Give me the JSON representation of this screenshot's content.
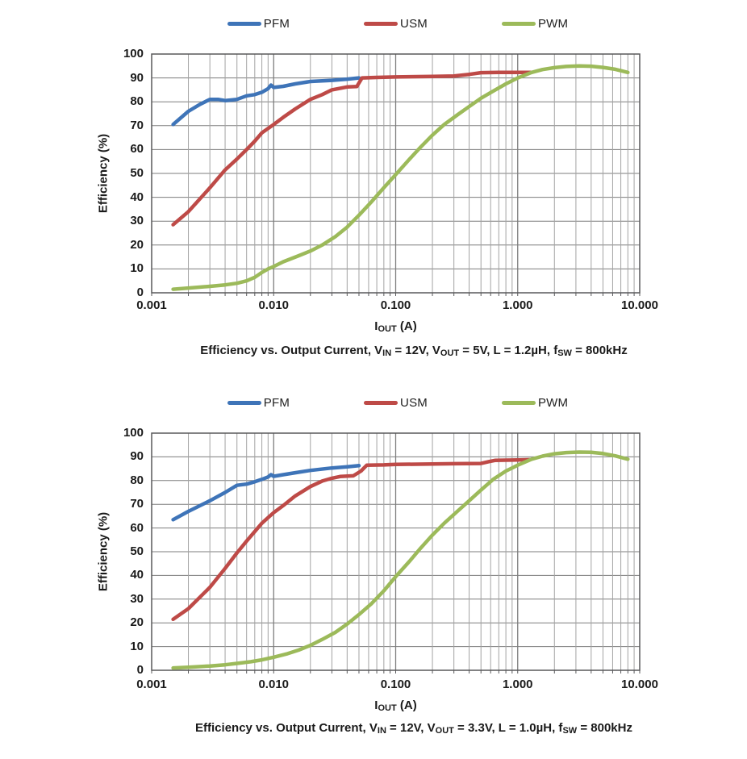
{
  "colors": {
    "pfm": "#3E74B8",
    "usm": "#BE4A47",
    "pwm": "#9CBA5A",
    "grid_minor": "#A3A3A3",
    "grid_major": "#7D7D7D",
    "plot_border": "#58585A",
    "text": "#1A1A1A"
  },
  "chart_data": [
    {
      "type": "line",
      "title": "Efficiency vs. Output Current, VIN = 12V, VOUT = 5V, L = 1.2µH, fSW = 800kHz",
      "xlabel": "IOUT (A)",
      "ylabel": "Efficiency (%)",
      "xscale": "log",
      "xlim": [
        0.001,
        10
      ],
      "ylim": [
        0,
        100
      ],
      "grid": true,
      "legend_position": "top",
      "x_ticks": [
        {
          "value": 0.001,
          "label": "0.001"
        },
        {
          "value": 0.01,
          "label": "0.010"
        },
        {
          "value": 0.1,
          "label": "0.100"
        },
        {
          "value": 1,
          "label": "1.000"
        },
        {
          "value": 10,
          "label": "10.000"
        }
      ],
      "y_ticks": [
        0,
        10,
        20,
        30,
        40,
        50,
        60,
        70,
        80,
        90,
        100
      ],
      "xlabel_parts": [
        {
          "t": "I"
        },
        {
          "t": "OUT",
          "sub": true
        },
        {
          "t": " (A)"
        }
      ],
      "caption_parts": [
        {
          "t": "Efficiency vs. Output Current, V"
        },
        {
          "t": "IN",
          "sub": true
        },
        {
          "t": " = 12V, V"
        },
        {
          "t": "OUT",
          "sub": true
        },
        {
          "t": " = 5V, L = 1.2µH, f"
        },
        {
          "t": "SW",
          "sub": true
        },
        {
          "t": " = 800kHz"
        }
      ],
      "series": [
        {
          "name": "PFM",
          "color_key": "pfm",
          "x": [
            0.0015,
            0.002,
            0.0025,
            0.003,
            0.0035,
            0.004,
            0.005,
            0.006,
            0.007,
            0.008,
            0.009,
            0.0095,
            0.01,
            0.012,
            0.015,
            0.02,
            0.03,
            0.04,
            0.05
          ],
          "y": [
            70.5,
            76,
            79,
            81,
            81,
            80.5,
            81,
            82.5,
            83,
            84,
            85.5,
            87,
            86,
            86.5,
            87.5,
            88.5,
            89,
            89.5,
            90
          ]
        },
        {
          "name": "USM",
          "color_key": "usm",
          "x": [
            0.0015,
            0.002,
            0.003,
            0.004,
            0.005,
            0.006,
            0.007,
            0.008,
            0.01,
            0.012,
            0.015,
            0.02,
            0.025,
            0.03,
            0.04,
            0.048,
            0.053,
            0.07,
            0.1,
            0.2,
            0.3,
            0.4,
            0.5,
            0.7,
            1.0,
            1.3
          ],
          "y": [
            28.5,
            34,
            44,
            51.5,
            56,
            60,
            63.5,
            67,
            70.5,
            73.5,
            77,
            81,
            83,
            85,
            86.2,
            86.4,
            90,
            90.2,
            90.4,
            90.6,
            90.8,
            91.5,
            92.2,
            92.3,
            92.3,
            92.3
          ]
        },
        {
          "name": "PWM",
          "color_key": "pwm",
          "x": [
            0.0015,
            0.002,
            0.003,
            0.004,
            0.005,
            0.006,
            0.007,
            0.008,
            0.009,
            0.01,
            0.012,
            0.016,
            0.02,
            0.025,
            0.032,
            0.04,
            0.05,
            0.063,
            0.08,
            0.1,
            0.13,
            0.16,
            0.2,
            0.25,
            0.32,
            0.4,
            0.5,
            0.63,
            0.8,
            1.0,
            1.3,
            1.6,
            2.0,
            2.5,
            3.2,
            4.0,
            5.0,
            6.3,
            8.0
          ],
          "y": [
            1.5,
            2,
            2.7,
            3.3,
            4,
            5,
            6.5,
            8.5,
            10,
            11,
            13,
            15.5,
            17.5,
            20,
            23.5,
            27.5,
            32.5,
            38,
            44,
            49.5,
            56,
            61,
            66,
            70.5,
            74.5,
            78,
            81.5,
            84.5,
            87.5,
            90,
            92.3,
            93.5,
            94.3,
            94.8,
            95,
            94.9,
            94.4,
            93.6,
            92.3
          ]
        }
      ]
    },
    {
      "type": "line",
      "title": "Efficiency vs. Output Current, VIN = 12V, VOUT = 3.3V, L = 1.0µH, fSW = 800kHz",
      "xlabel": "IOUT (A)",
      "ylabel": "Efficiency (%)",
      "xscale": "log",
      "xlim": [
        0.001,
        10
      ],
      "ylim": [
        0,
        100
      ],
      "grid": true,
      "legend_position": "top",
      "x_ticks": [
        {
          "value": 0.001,
          "label": "0.001"
        },
        {
          "value": 0.01,
          "label": "0.010"
        },
        {
          "value": 0.1,
          "label": "0.100"
        },
        {
          "value": 1,
          "label": "1.000"
        },
        {
          "value": 10,
          "label": "10.000"
        }
      ],
      "y_ticks": [
        0,
        10,
        20,
        30,
        40,
        50,
        60,
        70,
        80,
        90,
        100
      ],
      "xlabel_parts": [
        {
          "t": "I"
        },
        {
          "t": "OUT",
          "sub": true
        },
        {
          "t": " (A)"
        }
      ],
      "caption_parts": [
        {
          "t": "Efficiency vs. Output Current, V"
        },
        {
          "t": "IN",
          "sub": true
        },
        {
          "t": " = 12V, V"
        },
        {
          "t": "OUT",
          "sub": true
        },
        {
          "t": " = 3.3V, L = 1.0µH, f"
        },
        {
          "t": "SW",
          "sub": true
        },
        {
          "t": " = 800kHz"
        }
      ],
      "series": [
        {
          "name": "PFM",
          "color_key": "pfm",
          "x": [
            0.0015,
            0.002,
            0.003,
            0.004,
            0.005,
            0.006,
            0.007,
            0.008,
            0.009,
            0.0095,
            0.01,
            0.012,
            0.015,
            0.02,
            0.03,
            0.04,
            0.05
          ],
          "y": [
            63.5,
            67,
            71.5,
            75,
            78,
            78.5,
            79.5,
            80.5,
            81.5,
            82.5,
            81.8,
            82.5,
            83.3,
            84.3,
            85.3,
            85.8,
            86.3
          ]
        },
        {
          "name": "USM",
          "color_key": "usm",
          "x": [
            0.0015,
            0.002,
            0.003,
            0.004,
            0.005,
            0.006,
            0.007,
            0.008,
            0.01,
            0.012,
            0.015,
            0.02,
            0.025,
            0.03,
            0.035,
            0.045,
            0.052,
            0.058,
            0.08,
            0.1,
            0.2,
            0.3,
            0.5,
            0.58,
            0.65,
            0.8,
            1.0,
            1.25
          ],
          "y": [
            21.5,
            26,
            35,
            43,
            49.5,
            54.5,
            58.5,
            62,
            66.5,
            69.5,
            73.5,
            77.5,
            79.8,
            81,
            81.7,
            82,
            84,
            86.5,
            86.6,
            86.8,
            87,
            87.1,
            87.2,
            88,
            88.5,
            88.6,
            88.7,
            88.8
          ]
        },
        {
          "name": "PWM",
          "color_key": "pwm",
          "x": [
            0.0015,
            0.002,
            0.003,
            0.004,
            0.005,
            0.0065,
            0.008,
            0.01,
            0.013,
            0.016,
            0.02,
            0.025,
            0.032,
            0.04,
            0.05,
            0.063,
            0.08,
            0.1,
            0.13,
            0.16,
            0.2,
            0.25,
            0.32,
            0.4,
            0.5,
            0.63,
            0.8,
            1.0,
            1.3,
            1.6,
            2.0,
            2.5,
            3.2,
            4.0,
            5.0,
            6.3,
            8.0
          ],
          "y": [
            1,
            1.3,
            1.8,
            2.3,
            2.9,
            3.6,
            4.4,
            5.5,
            7,
            8.5,
            10.5,
            13,
            16,
            19.5,
            23.5,
            28,
            33.5,
            39.5,
            46,
            51.5,
            57,
            62,
            67,
            71.5,
            76,
            80.5,
            84,
            86.5,
            89,
            90.3,
            91.3,
            91.8,
            92,
            91.9,
            91.4,
            90.4,
            89
          ]
        }
      ]
    }
  ]
}
